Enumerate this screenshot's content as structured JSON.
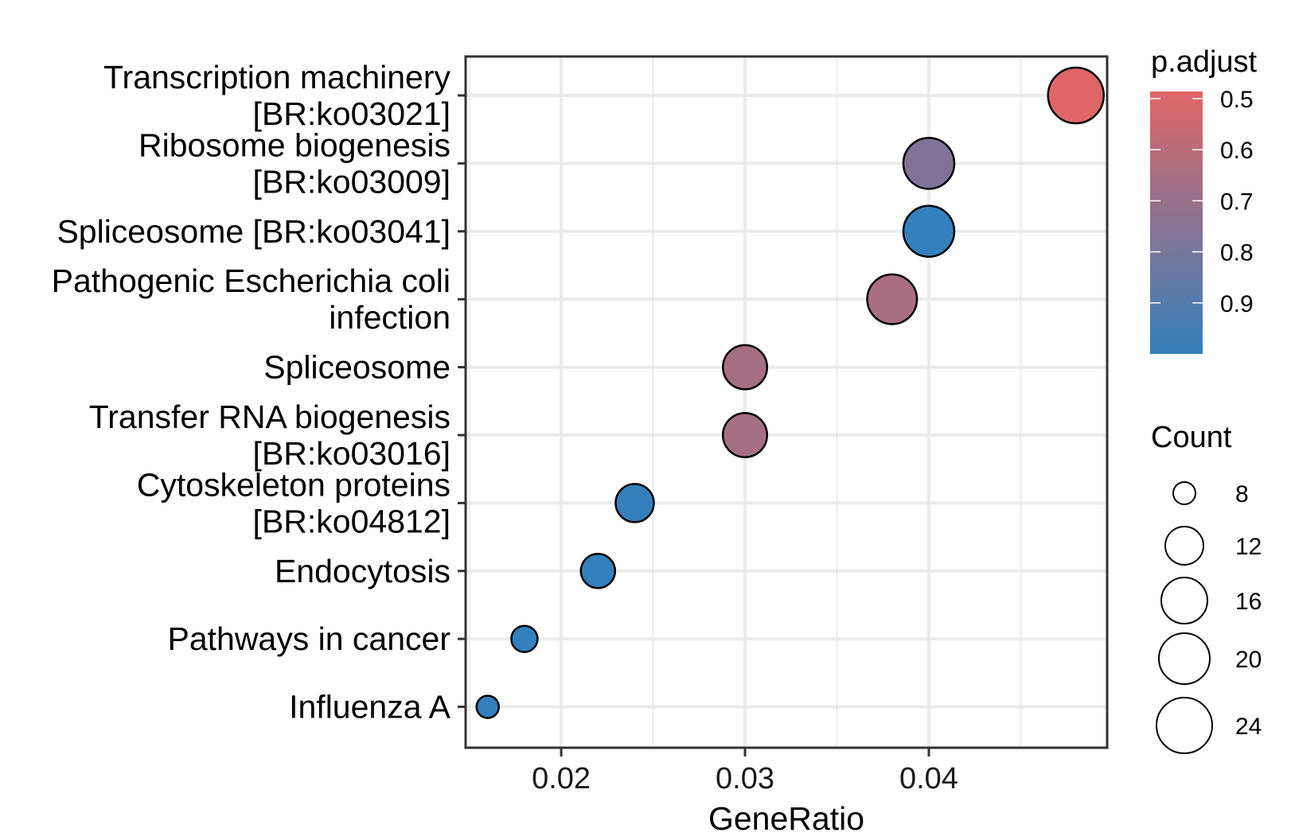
{
  "chart_data": {
    "type": "scatter",
    "subtype": "dot-plot",
    "title": "",
    "xlabel": "GeneRatio",
    "ylabel": "",
    "xlim": [
      0.0148,
      0.0497
    ],
    "xticks": [
      0.02,
      0.03,
      0.04
    ],
    "xtick_labels": [
      "0.02",
      "0.03",
      "0.04"
    ],
    "grid": true,
    "categories": [
      "Transcription machinery\n[BR:ko03021]",
      "Ribosome biogenesis\n[BR:ko03009]",
      "Spliceosome [BR:ko03041]",
      "Pathogenic Escherichia coli\ninfection",
      "Spliceosome",
      "Transfer RNA biogenesis\n[BR:ko03016]",
      "Cytoskeleton proteins\n[BR:ko04812]",
      "Endocytosis",
      "Pathways in cancer",
      "Influenza A"
    ],
    "points": [
      {
        "term": "Transcription machinery [BR:ko03021]",
        "gene_ratio": 0.048,
        "count": 24,
        "p_adjust": 0.49
      },
      {
        "term": "Ribosome biogenesis [BR:ko03009]",
        "gene_ratio": 0.04,
        "count": 20,
        "p_adjust": 0.77
      },
      {
        "term": "Spliceosome [BR:ko03041]",
        "gene_ratio": 0.04,
        "count": 20,
        "p_adjust": 1.0
      },
      {
        "term": "Pathogenic Escherichia coli infection",
        "gene_ratio": 0.038,
        "count": 19,
        "p_adjust": 0.65
      },
      {
        "term": "Spliceosome",
        "gene_ratio": 0.03,
        "count": 15,
        "p_adjust": 0.66
      },
      {
        "term": "Transfer RNA biogenesis [BR:ko03016]",
        "gene_ratio": 0.03,
        "count": 15,
        "p_adjust": 0.66
      },
      {
        "term": "Cytoskeleton proteins [BR:ko04812]",
        "gene_ratio": 0.024,
        "count": 12,
        "p_adjust": 1.0
      },
      {
        "term": "Endocytosis",
        "gene_ratio": 0.022,
        "count": 11,
        "p_adjust": 1.0
      },
      {
        "term": "Pathways in cancer",
        "gene_ratio": 0.018,
        "count": 9,
        "p_adjust": 1.0
      },
      {
        "term": "Influenza A",
        "gene_ratio": 0.016,
        "count": 8,
        "p_adjust": 1.0
      }
    ],
    "color_legend": {
      "title": "p.adjust",
      "range": [
        0.486,
        1.0
      ],
      "breaks": [
        0.5,
        0.6,
        0.7,
        0.8,
        0.9
      ],
      "labels": [
        "0.5",
        "0.6",
        "0.7",
        "0.8",
        "0.9"
      ],
      "low_color": "#E06666",
      "high_color": "#3380BD"
    },
    "size_legend": {
      "title": "Count",
      "breaks": [
        8,
        12,
        16,
        20,
        24
      ],
      "labels": [
        "8",
        "12",
        "16",
        "20",
        "24"
      ]
    },
    "legend_placement": "right"
  }
}
